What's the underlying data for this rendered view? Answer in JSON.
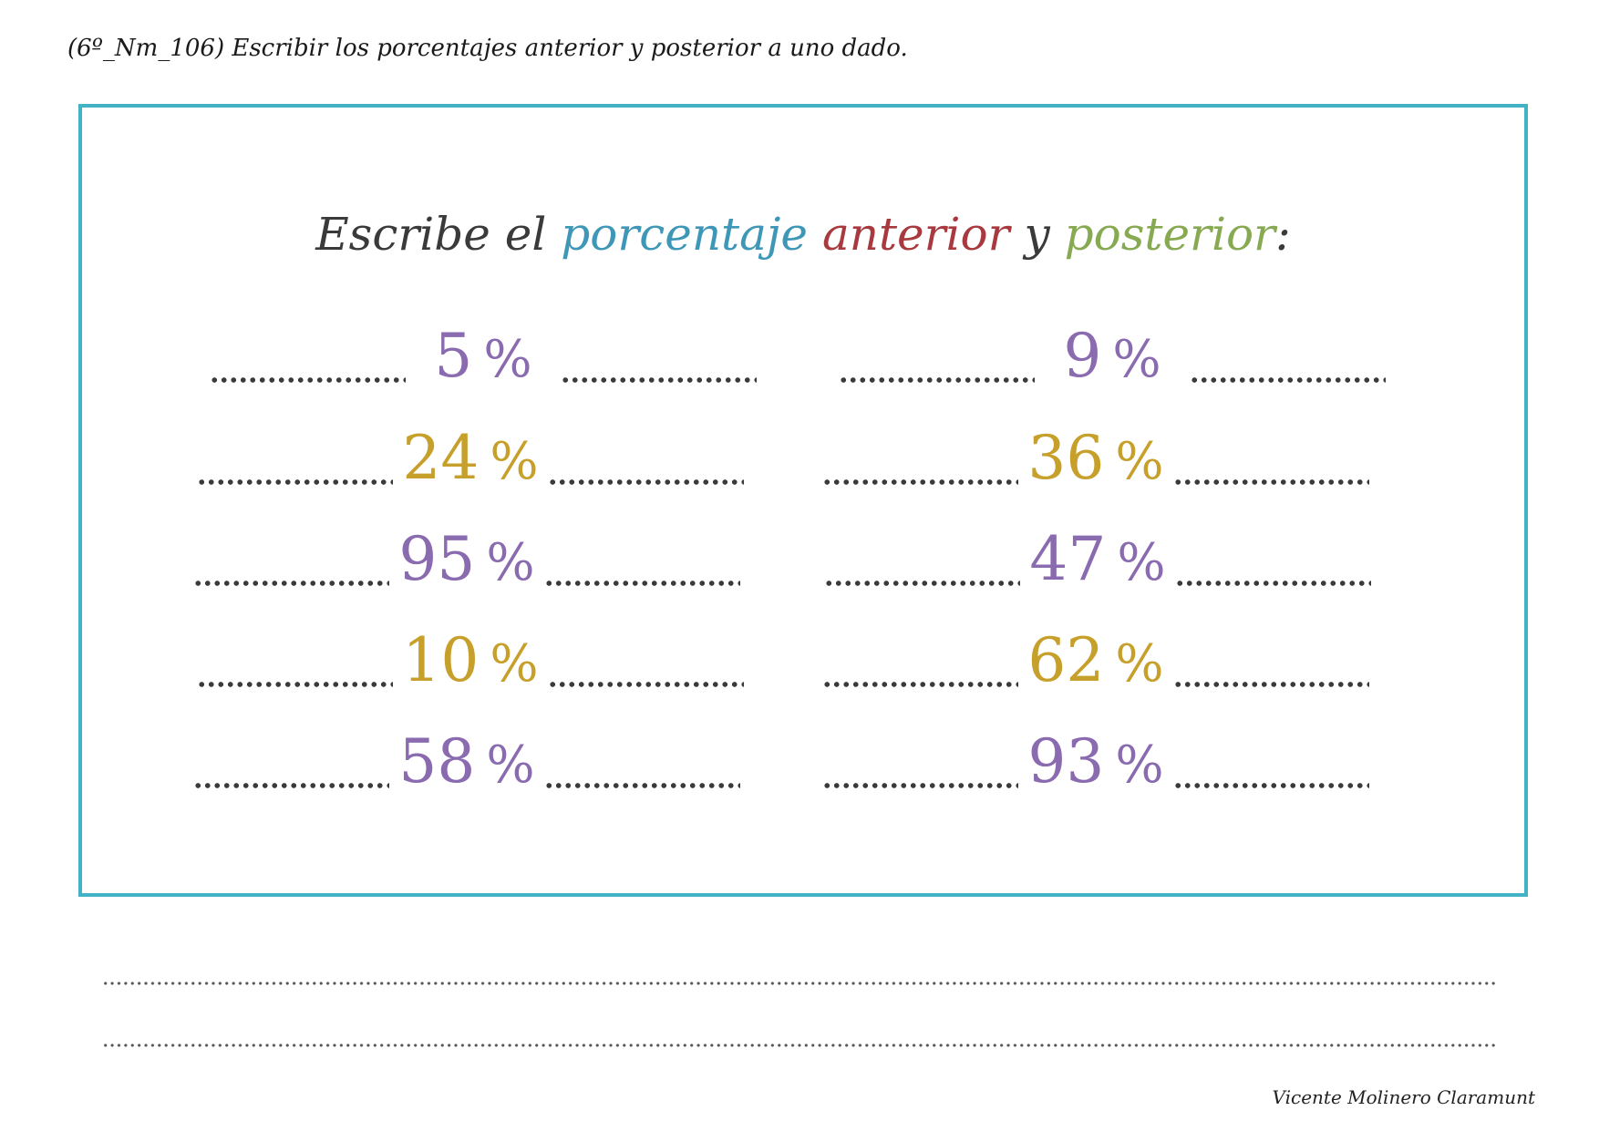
{
  "header": {
    "title": "(6º_Nm_106) Escribir los porcentajes anterior y posterior a uno dado."
  },
  "exercise": {
    "instruction": {
      "part1": "Escribe el",
      "part2": "porcentaje",
      "part3": "anterior",
      "part4": "y",
      "part5": "posterior",
      "part6": ":"
    },
    "percent_sign": "%",
    "rows": [
      {
        "left": "5",
        "right": "9",
        "left_color": "purple",
        "right_color": "purple"
      },
      {
        "left": "24",
        "right": "36",
        "left_color": "gold",
        "right_color": "gold"
      },
      {
        "left": "95",
        "right": "47",
        "left_color": "purple",
        "right_color": "purple"
      },
      {
        "left": "10",
        "right": "62",
        "left_color": "gold",
        "right_color": "gold"
      },
      {
        "left": "58",
        "right": "93",
        "left_color": "purple",
        "right_color": "purple"
      }
    ],
    "colors": {
      "border": "#41b3c4",
      "purple": "#8a6bb0",
      "gold": "#c6a02a",
      "blue": "#3e97b6",
      "red": "#a83a3f",
      "green": "#86a951"
    }
  },
  "footer": {
    "signature": "Vicente Molinero Claramunt"
  }
}
